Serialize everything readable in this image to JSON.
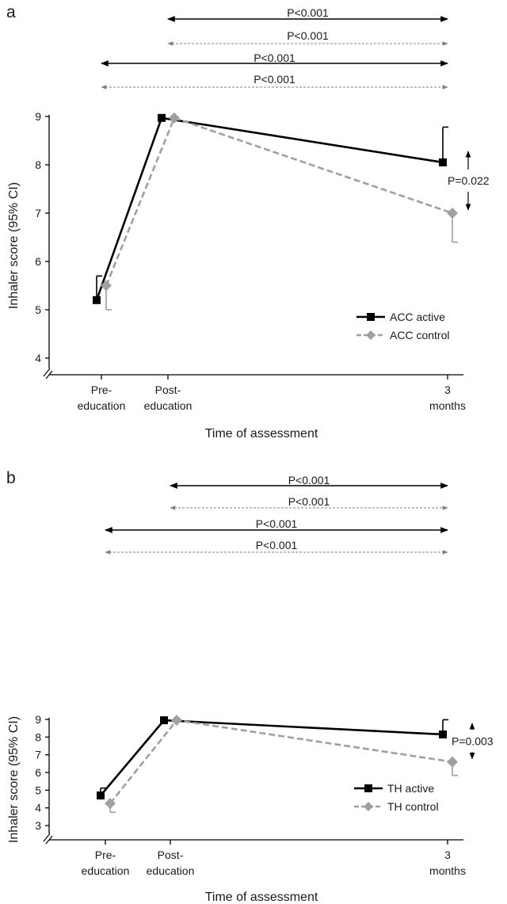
{
  "chart_data": [
    {
      "panel_label": "a",
      "type": "line",
      "xlabel": "Time of assessment",
      "ylabel": "Inhaler score (95% CI)",
      "categories": [
        {
          "lines": [
            "Pre-",
            "education"
          ]
        },
        {
          "lines": [
            "Post-",
            "education"
          ]
        },
        {
          "lines": [
            "3",
            "months"
          ]
        }
      ],
      "ylim": [
        4,
        9
      ],
      "yticks": [
        "4",
        "5",
        "6",
        "7",
        "8",
        "9"
      ],
      "axis_break": true,
      "legend_position": "bottom-right",
      "series": [
        {
          "name": "ACC active",
          "style": "solid",
          "marker": "square",
          "color": "#000000",
          "values": [
            5.2,
            8.97,
            8.05
          ],
          "ci_upper": [
            5.7,
            null,
            8.78
          ]
        },
        {
          "name": "ACC control",
          "style": "dashed",
          "marker": "diamond",
          "color": "#a0a0a0",
          "values": [
            5.5,
            8.97,
            7.0
          ],
          "ci_lower": [
            5.0,
            null,
            6.4
          ]
        }
      ],
      "brackets": [
        {
          "label": "P<0.001",
          "from": 1,
          "to": 2,
          "style": "solid"
        },
        {
          "label": "P<0.001",
          "from": 1,
          "to": 2,
          "style": "dashed"
        },
        {
          "label": "P<0.001",
          "from": 0,
          "to": 2,
          "style": "solid"
        },
        {
          "label": "P<0.001",
          "from": 0,
          "to": 2,
          "style": "dashed"
        }
      ],
      "comparison": {
        "label": "P=0.022",
        "at": 2
      }
    },
    {
      "panel_label": "b",
      "type": "line",
      "xlabel": "Time of assessment",
      "ylabel": "Inhaler score (95% CI)",
      "categories": [
        {
          "lines": [
            "Pre-",
            "education"
          ]
        },
        {
          "lines": [
            "Post-",
            "education"
          ]
        },
        {
          "lines": [
            "3",
            "months"
          ]
        }
      ],
      "ylim": [
        3,
        9
      ],
      "yticks": [
        "3",
        "4",
        "5",
        "6",
        "7",
        "8",
        "9"
      ],
      "axis_break": true,
      "legend_position": "bottom-right",
      "series": [
        {
          "name": "TH active",
          "style": "solid",
          "marker": "square",
          "color": "#000000",
          "values": [
            4.7,
            8.95,
            8.15
          ],
          "ci_upper": [
            5.12,
            null,
            8.98
          ]
        },
        {
          "name": "TH  control",
          "style": "dashed",
          "marker": "diamond",
          "color": "#a0a0a0",
          "values": [
            4.25,
            8.95,
            6.6
          ],
          "ci_lower": [
            3.75,
            null,
            5.83
          ]
        }
      ],
      "brackets": [
        {
          "label": "P<0.001",
          "from": 1,
          "to": 2,
          "style": "solid"
        },
        {
          "label": "P<0.001",
          "from": 1,
          "to": 2,
          "style": "dashed"
        },
        {
          "label": "P<0.001",
          "from": 0,
          "to": 2,
          "style": "solid"
        },
        {
          "label": "P<0.001",
          "from": 0,
          "to": 2,
          "style": "dashed"
        }
      ],
      "comparison": {
        "label": "P=0.003",
        "at": 2
      }
    }
  ]
}
